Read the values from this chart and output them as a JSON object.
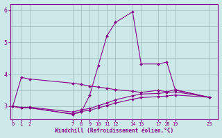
{
  "xlabel": "Windchill (Refroidissement éolien,°C)",
  "bg_color": "#cce8e8",
  "line_color": "#880088",
  "grid_color": "#99bbbb",
  "xtick_positions": [
    0,
    1,
    2,
    7,
    8,
    9,
    10,
    11,
    12,
    14,
    15,
    17,
    18,
    19,
    23
  ],
  "xlim": [
    -0.3,
    24.0
  ],
  "ylim": [
    2.6,
    6.2
  ],
  "yticks": [
    3,
    4,
    5,
    6
  ],
  "lines": [
    {
      "x": [
        0,
        1,
        2,
        7,
        8,
        9,
        10,
        11,
        12,
        14,
        15,
        17,
        18,
        19,
        23
      ],
      "y": [
        3.0,
        3.9,
        3.85,
        3.72,
        3.68,
        3.63,
        3.6,
        3.56,
        3.52,
        3.47,
        3.43,
        3.5,
        3.45,
        3.52,
        3.27
      ]
    },
    {
      "x": [
        0,
        1,
        2,
        7,
        8,
        9,
        10,
        11,
        12,
        14,
        15,
        17,
        18,
        19,
        23
      ],
      "y": [
        3.0,
        2.95,
        2.95,
        2.75,
        2.82,
        3.35,
        4.28,
        5.2,
        5.62,
        5.95,
        4.32,
        4.32,
        4.38,
        3.5,
        3.28
      ]
    },
    {
      "x": [
        0,
        1,
        2,
        7,
        8,
        9,
        10,
        11,
        12,
        14,
        15,
        17,
        18,
        19,
        23
      ],
      "y": [
        3.0,
        2.95,
        2.95,
        2.76,
        2.84,
        2.87,
        2.95,
        3.02,
        3.1,
        3.22,
        3.27,
        3.3,
        3.32,
        3.35,
        3.28
      ]
    },
    {
      "x": [
        0,
        1,
        2,
        7,
        8,
        9,
        10,
        11,
        12,
        14,
        15,
        17,
        18,
        19,
        23
      ],
      "y": [
        3.0,
        2.96,
        2.97,
        2.82,
        2.89,
        2.93,
        3.02,
        3.1,
        3.2,
        3.33,
        3.38,
        3.4,
        3.43,
        3.45,
        3.28
      ]
    }
  ],
  "marker": "D",
  "markersize": 2,
  "linewidth": 0.8,
  "tick_fontsize": 5,
  "label_fontsize": 5.5
}
